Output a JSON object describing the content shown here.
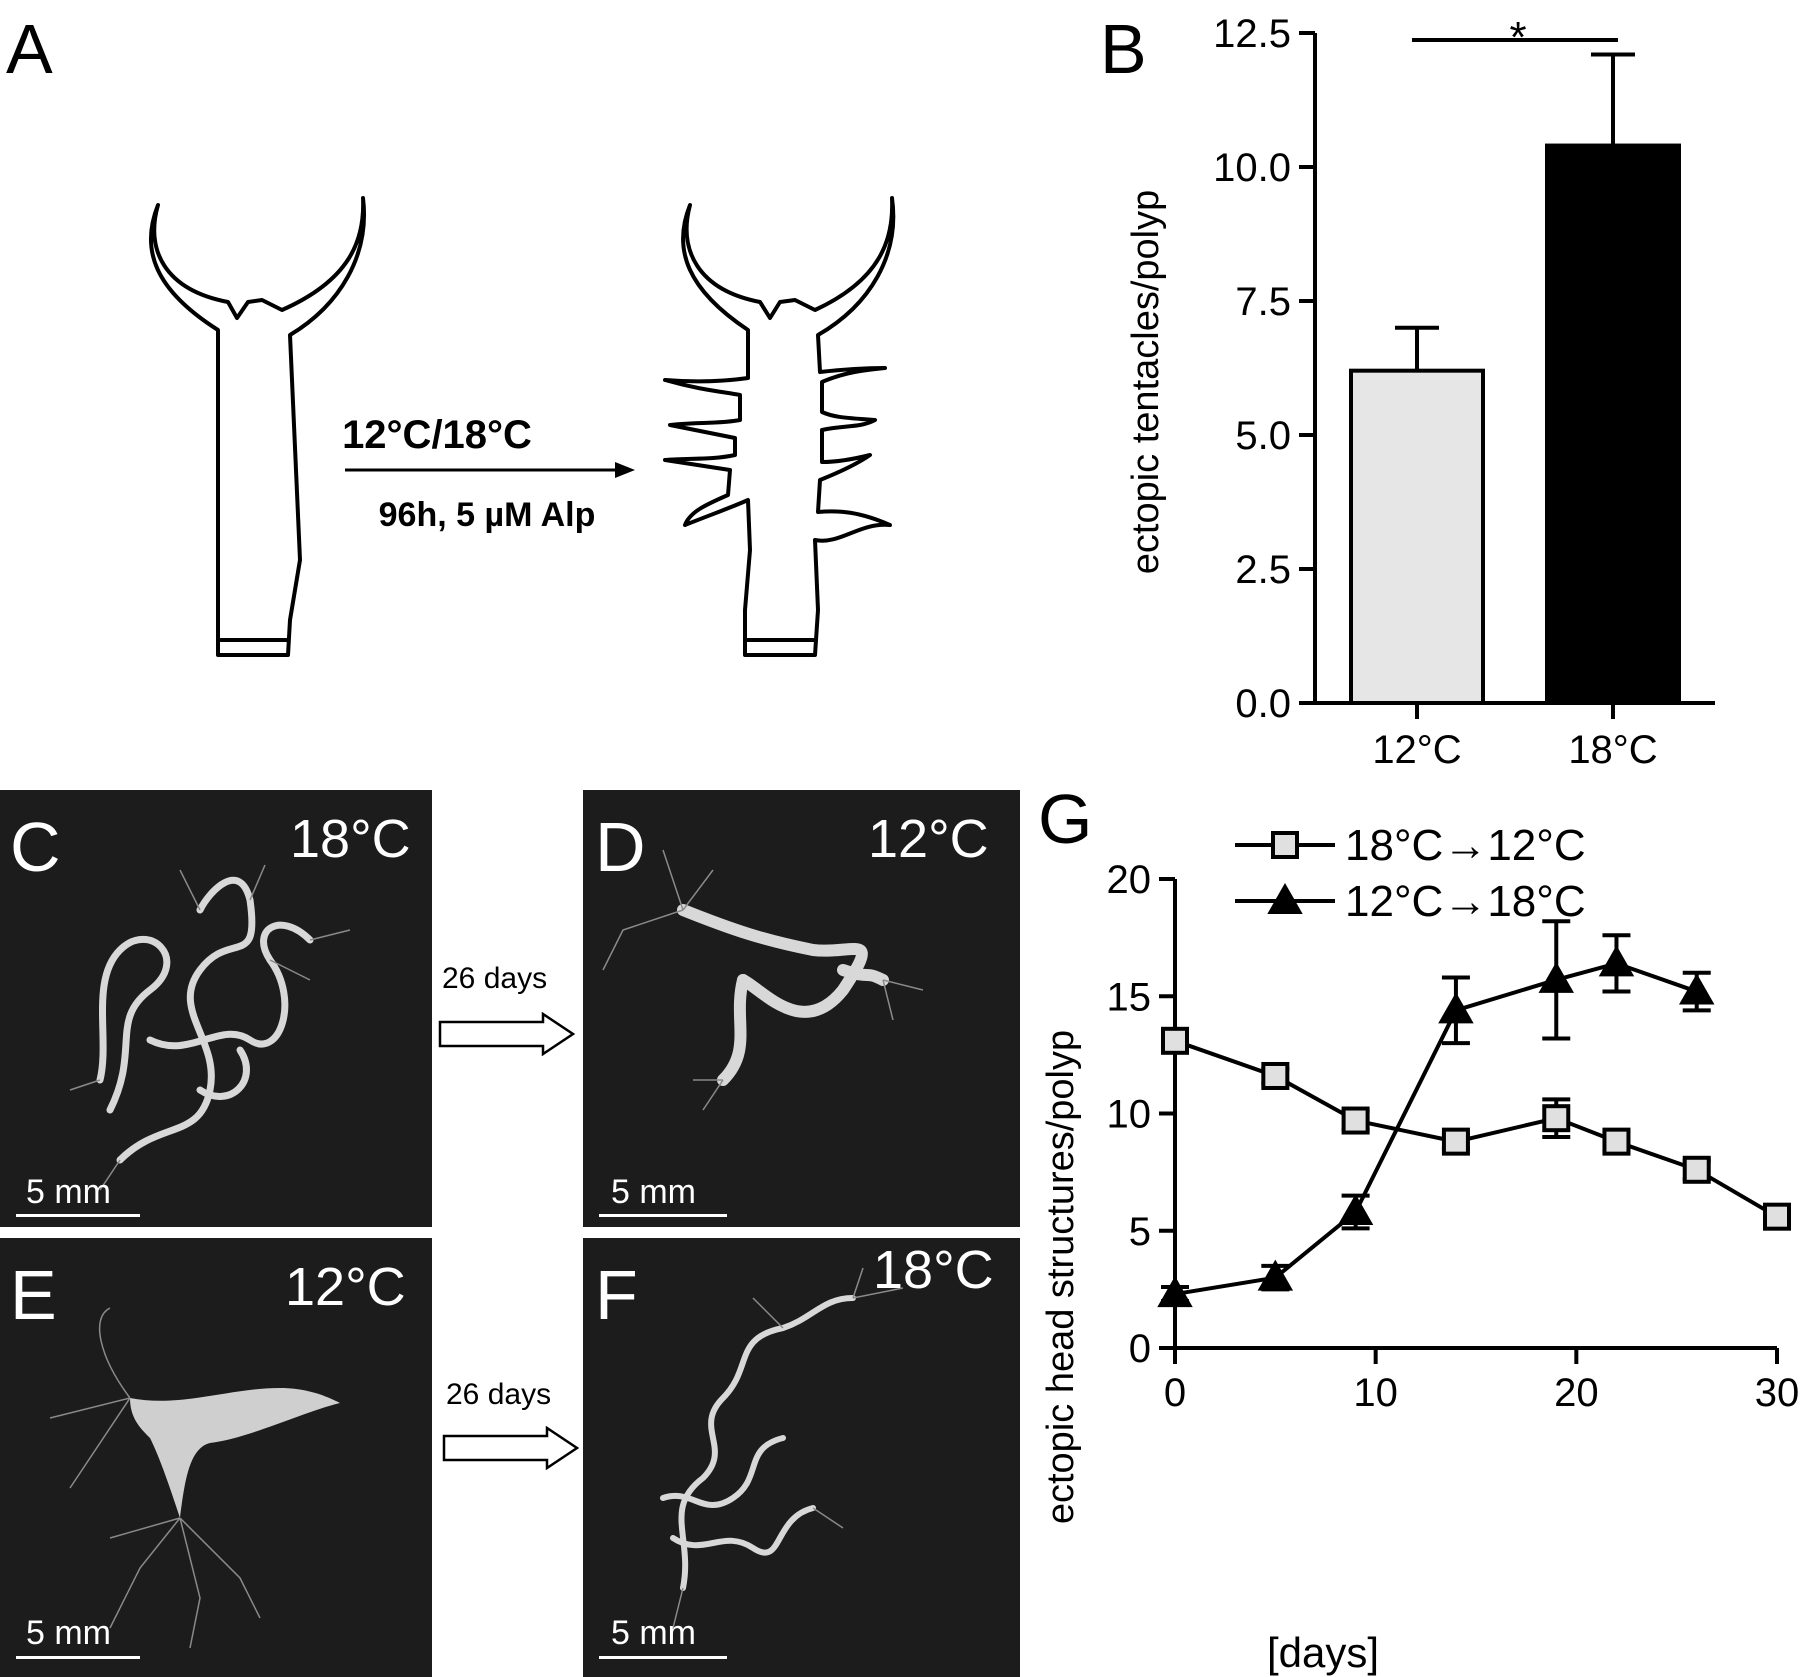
{
  "panels": {
    "a": {
      "letter": "A",
      "condition": "12°C/18°C",
      "treatment": "96h, 5 µM Alp"
    },
    "b": {
      "letter": "B",
      "significance": "*"
    },
    "c": {
      "letter": "C",
      "temp": "18°C",
      "scale": "5 mm"
    },
    "d": {
      "letter": "D",
      "temp": "12°C",
      "scale": "5 mm"
    },
    "e": {
      "letter": "E",
      "temp": "12°C",
      "scale": "5 mm"
    },
    "f": {
      "letter": "F",
      "temp": "18°C",
      "scale": "5 mm"
    },
    "arrows": {
      "top": "26 days",
      "bottom": "26 days"
    },
    "g": {
      "letter": "G"
    }
  },
  "chart_data": [
    {
      "type": "bar",
      "categories": [
        "12°C",
        "18°C"
      ],
      "values": [
        6.2,
        10.4
      ],
      "errors": [
        0.8,
        1.7
      ],
      "colors": [
        "#e6e6e6",
        "#000000"
      ],
      "xlabel": "",
      "ylabel": "ectopic tentacles/polyp",
      "ylim": [
        0,
        12.5
      ],
      "yticks": [
        "0.0",
        "2.5",
        "5.0",
        "7.5",
        "10.0",
        "12.5"
      ]
    },
    {
      "type": "line",
      "xlabel": "[days]",
      "ylabel": "ectopic head structures/polyp",
      "xlim": [
        0,
        30
      ],
      "ylim": [
        0,
        20
      ],
      "xticks": [
        "0",
        "10",
        "20",
        "30"
      ],
      "yticks": [
        "0",
        "5",
        "10",
        "15",
        "20"
      ],
      "legend": "top",
      "series": [
        {
          "name": "18°C→12°C",
          "marker": "square",
          "color": "#e0e0e0",
          "x": [
            0,
            5,
            9,
            14,
            19,
            22,
            26,
            30
          ],
          "y": [
            13.1,
            11.6,
            9.7,
            8.8,
            9.8,
            8.8,
            7.6,
            5.6
          ],
          "err": [
            0.4,
            0.3,
            0.4,
            0.3,
            0.8,
            0.4,
            0.4,
            0.2
          ]
        },
        {
          "name": "12°C→18°C",
          "marker": "triangle",
          "color": "#000000",
          "x": [
            0,
            5,
            9,
            14,
            19,
            22,
            26
          ],
          "y": [
            2.3,
            3.0,
            5.8,
            14.4,
            15.7,
            16.4,
            15.2
          ],
          "err": [
            0.3,
            0.5,
            0.7,
            1.4,
            2.5,
            1.2,
            0.8
          ]
        }
      ]
    }
  ]
}
